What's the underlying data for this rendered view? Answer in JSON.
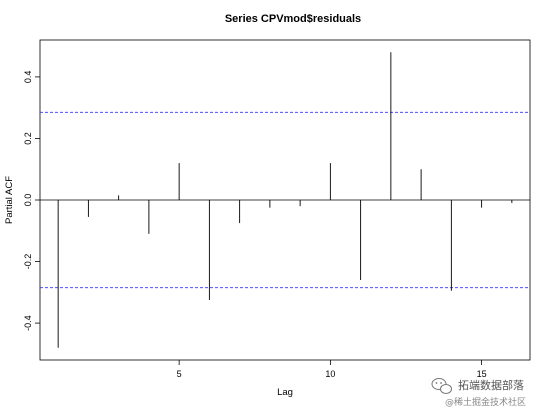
{
  "chart_data": {
    "type": "bar",
    "title": "Series  CPVmod$residuals",
    "xlabel": "Lag",
    "ylabel": "Partial ACF",
    "x": [
      1,
      2,
      3,
      4,
      5,
      6,
      7,
      8,
      9,
      10,
      11,
      12,
      13,
      14,
      15,
      16
    ],
    "values": [
      -0.48,
      -0.055,
      0.015,
      -0.11,
      0.12,
      -0.325,
      -0.075,
      -0.025,
      -0.02,
      0.12,
      -0.26,
      0.48,
      0.1,
      -0.295,
      -0.025,
      -0.01
    ],
    "xlim": [
      0.4,
      16.6
    ],
    "ylim": [
      -0.52,
      0.52
    ],
    "x_ticks": [
      5,
      10,
      15
    ],
    "y_ticks": [
      -0.4,
      -0.2,
      0.0,
      0.2,
      0.4
    ],
    "x_tick_labels": [
      "5",
      "10",
      "15"
    ],
    "y_tick_labels": [
      "-0.4",
      "-0.2",
      "0.0",
      "0.2",
      "0.4"
    ],
    "confidence_bound": 0.285,
    "confidence_color": "#3333ff",
    "bar_color": "#000000",
    "grid": false
  },
  "watermark": {
    "line1": "拓端数据部落",
    "line2": "@稀土掘金技术社区"
  }
}
